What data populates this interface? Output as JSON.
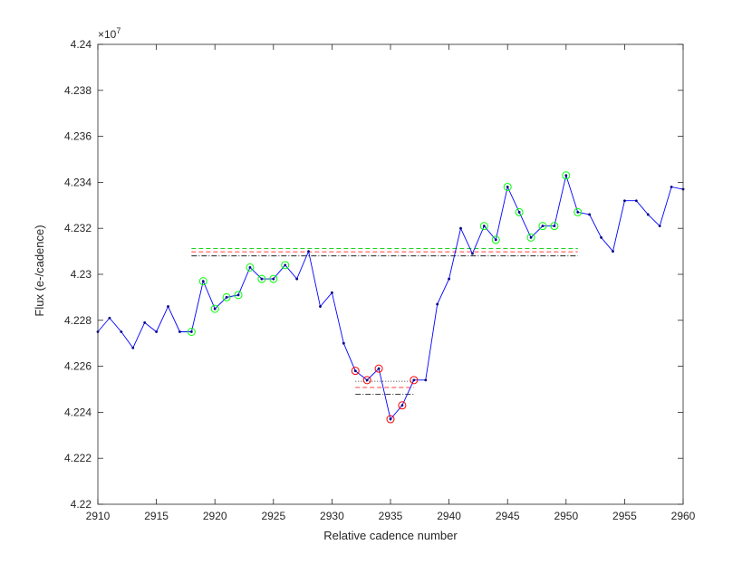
{
  "chart_data": {
    "type": "line",
    "xlabel": "Relative cadence number",
    "ylabel": "Flux (e-/cadence)",
    "exponent_label": "×10",
    "exponent_power": "7",
    "xlim": [
      2910,
      2960
    ],
    "ylim": [
      4.22,
      4.24
    ],
    "x_ticks": [
      2910,
      2915,
      2920,
      2925,
      2930,
      2935,
      2940,
      2945,
      2950,
      2955,
      2960
    ],
    "y_ticks": [
      4.22,
      4.222,
      4.224,
      4.226,
      4.228,
      4.23,
      4.232,
      4.234,
      4.236,
      4.238,
      4.24
    ],
    "y_tick_labels": [
      "4.22",
      "4.222",
      "4.224",
      "4.226",
      "4.228",
      "4.23",
      "4.232",
      "4.234",
      "4.236",
      "4.238",
      "4.24"
    ],
    "grid": false,
    "series": [
      {
        "color": "#0000ff",
        "x": [
          2910,
          2911,
          2912,
          2913,
          2914,
          2915,
          2916,
          2917,
          2918,
          2919,
          2920,
          2921,
          2922,
          2923,
          2924,
          2925,
          2926,
          2927,
          2928,
          2929,
          2930,
          2931,
          2932,
          2933,
          2934,
          2935,
          2936,
          2937,
          2938,
          2939,
          2940,
          2941,
          2942,
          2943,
          2944,
          2945,
          2946,
          2947,
          2948,
          2949,
          2950,
          2951,
          2952,
          2953,
          2954,
          2955,
          2956,
          2957,
          2958,
          2959,
          2960
        ],
        "y": [
          4.2275,
          4.2281,
          4.2275,
          4.2268,
          4.2279,
          4.2275,
          4.2286,
          4.2275,
          4.2275,
          4.2297,
          4.2285,
          4.229,
          4.2291,
          4.2303,
          4.2298,
          4.2298,
          4.2304,
          4.2298,
          4.231,
          4.2286,
          4.2292,
          4.227,
          4.2258,
          4.2254,
          4.2259,
          4.2237,
          4.2243,
          4.2254,
          4.2254,
          4.2287,
          4.2298,
          4.232,
          4.2309,
          4.2321,
          4.2315,
          4.2338,
          4.2327,
          4.2316,
          4.2321,
          4.2321,
          4.2343,
          4.2327,
          4.2326,
          4.2316,
          4.231,
          4.2332,
          4.2332,
          4.2326,
          4.2321,
          4.2338,
          4.2337
        ]
      }
    ],
    "green_markers": {
      "color": "#00ff00",
      "x": [
        2918,
        2919,
        2920,
        2921,
        2922,
        2923,
        2924,
        2925,
        2926,
        2943,
        2944,
        2945,
        2946,
        2947,
        2948,
        2949,
        2950,
        2951
      ]
    },
    "red_markers": {
      "color": "#ff0000",
      "x": [
        2932,
        2933,
        2934,
        2935,
        2936,
        2937
      ]
    },
    "reference_lines": [
      {
        "color": "#00cc00",
        "style": "dashed",
        "x": [
          2918,
          2951
        ],
        "y": 4.23112
      },
      {
        "color": "#ff0000",
        "style": "dashed",
        "x": [
          2918,
          2951
        ],
        "y": 4.23098
      },
      {
        "color": "#000000",
        "style": "dashdot",
        "x": [
          2918,
          2951
        ],
        "y": 4.2308
      },
      {
        "color": "#000000",
        "style": "dotted",
        "x": [
          2932,
          2937
        ],
        "y": 4.22535
      },
      {
        "color": "#ff0000",
        "style": "dashed",
        "x": [
          2932,
          2937
        ],
        "y": 4.22508
      },
      {
        "color": "#000000",
        "style": "dashdot",
        "x": [
          2932,
          2937
        ],
        "y": 4.22478
      }
    ]
  }
}
